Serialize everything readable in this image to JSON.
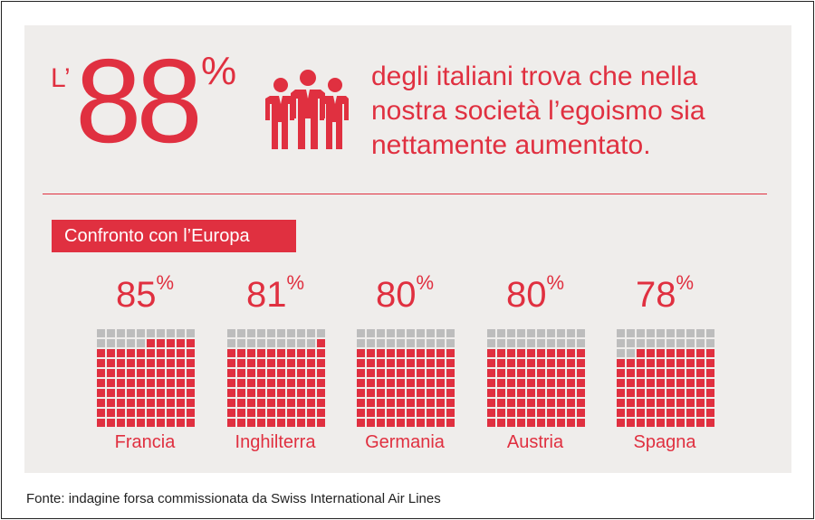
{
  "headline": {
    "prefix": "L’",
    "number": "88",
    "percent_sign": "%",
    "text": "degli italiani trova che nella nostra società l’egoismo sia nettamente aumentato."
  },
  "banner": "Confronto con l’Europa",
  "source": "Fonte: indagine forsa commissionata da Swiss International Air Lines",
  "colors": {
    "accent": "#e03040",
    "empty": "#bdbdbd",
    "panel": "#efedeb"
  },
  "chart_data": {
    "type": "bar",
    "title": "Confronto con l’Europa",
    "unit": "%",
    "categories": [
      "Francia",
      "Inghilterra",
      "Germania",
      "Austria",
      "Spagna"
    ],
    "values": [
      85,
      81,
      80,
      80,
      78
    ],
    "labels": [
      "85",
      "81",
      "80",
      "80",
      "78"
    ],
    "grid": "waffle 10x10"
  }
}
